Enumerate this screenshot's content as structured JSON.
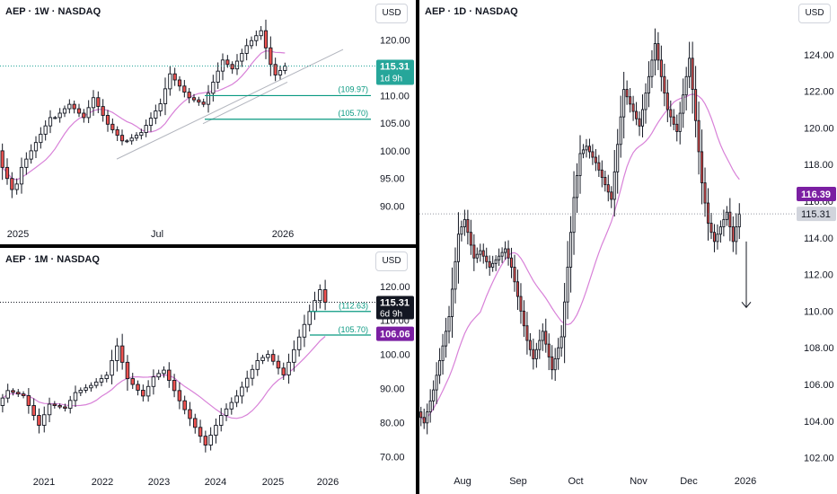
{
  "colors": {
    "up": "#26a69a",
    "down": "#ef5350",
    "wick": "#131722",
    "ma": "#d881d8",
    "trendline": "#b2b5be",
    "level": "#089981",
    "purple": "#7b1fa2",
    "current": "#131722",
    "grey_label": "#d1d4dc"
  },
  "panels": {
    "weekly": {
      "title": "AEP · 1W · NASDAQ",
      "currency": "USD",
      "price_badge": {
        "price": "115.31",
        "countdown": "1d 9h"
      },
      "levels": [
        {
          "label": "(109.97)",
          "value": 109.97
        },
        {
          "label": "(105.70)",
          "value": 105.7
        }
      ]
    },
    "monthly": {
      "title": "AEP · 1M · NASDAQ",
      "currency": "USD",
      "price_badge": {
        "price": "115.31",
        "countdown": "6d 9h"
      },
      "level_badge": "106.06",
      "levels": [
        {
          "label": "(112.63)",
          "value": 112.63
        },
        {
          "label": "(105.70)",
          "value": 105.7
        }
      ]
    },
    "daily": {
      "title": "AEP · 1D · NASDAQ",
      "currency": "USD",
      "ma_badge": "116.39",
      "price_badge": "115.31"
    }
  },
  "chart_data": [
    {
      "type": "candlestick",
      "title": "AEP · 1W · NASDAQ",
      "ylim": [
        87,
        124
      ],
      "yticks": [
        90,
        95,
        100,
        105,
        110,
        115,
        120
      ],
      "yticklabels": [
        "90.00",
        "95.00",
        "100.00",
        "105.00",
        "110.00",
        "115.00",
        "120.00"
      ],
      "xticklabels": [
        "2025",
        "Jul",
        "2026"
      ],
      "series": [
        {
          "values": [
            [
              100.0,
              97.0
            ],
            [
              97.0,
              95.0
            ],
            [
              95.0,
              93.0
            ],
            [
              93.0,
              94.0
            ],
            [
              94.0,
              97.0
            ],
            [
              97.0,
              98.5
            ],
            [
              98.5,
              100.0
            ],
            [
              100.0,
              101.5
            ],
            [
              101.5,
              103.0
            ],
            [
              103.0,
              104.5
            ],
            [
              104.5,
              106.0
            ],
            [
              106.0,
              106.0
            ],
            [
              106.0,
              106.8
            ],
            [
              106.8,
              107.6
            ],
            [
              107.6,
              108.4
            ],
            [
              108.4,
              107.6
            ],
            [
              107.6,
              106.8
            ],
            [
              106.8,
              106.0
            ],
            [
              106.0,
              107.8
            ],
            [
              107.8,
              109.6
            ],
            [
              109.6,
              108.0
            ],
            [
              108.0,
              106.4
            ],
            [
              106.4,
              104.8
            ],
            [
              104.8,
              103.8
            ],
            [
              103.8,
              102.8
            ],
            [
              102.8,
              101.8
            ],
            [
              101.8,
              101.8
            ],
            [
              101.8,
              102.3
            ],
            [
              102.3,
              102.8
            ],
            [
              102.8,
              103.3
            ],
            [
              103.3,
              104.6
            ],
            [
              104.6,
              105.9
            ],
            [
              105.9,
              107.2
            ],
            [
              107.2,
              108.5
            ],
            [
              108.5,
              111.2
            ],
            [
              111.2,
              113.9
            ],
            [
              113.9,
              112.8
            ],
            [
              112.8,
              111.7
            ],
            [
              111.7,
              110.6
            ],
            [
              110.6,
              109.6
            ],
            [
              109.6,
              109.2
            ],
            [
              109.2,
              108.8
            ],
            [
              108.8,
              108.4
            ],
            [
              108.4,
              110.4
            ],
            [
              110.4,
              112.4
            ],
            [
              112.4,
              114.4
            ],
            [
              114.4,
              116.4
            ],
            [
              116.4,
              115.6
            ],
            [
              115.6,
              114.8
            ],
            [
              114.8,
              116.2
            ],
            [
              116.2,
              117.6
            ],
            [
              117.6,
              119.0
            ],
            [
              119.0,
              119.9
            ],
            [
              119.9,
              120.8
            ],
            [
              120.8,
              121.7
            ],
            [
              121.7,
              118.6
            ],
            [
              118.6,
              115.6
            ],
            [
              115.6,
              113.7
            ],
            [
              113.7,
              114.5
            ],
            [
              114.5,
              115.3
            ]
          ]
        }
      ]
    },
    {
      "type": "candlestick",
      "title": "AEP · 1M · NASDAQ",
      "ylim": [
        68,
        126
      ],
      "yticks": [
        70,
        80,
        90,
        100,
        110,
        120
      ],
      "yticklabels": [
        "70.00",
        "80.00",
        "90.00",
        "100.00",
        "110.00",
        "120.00"
      ],
      "xticklabels": [
        "2021",
        "2022",
        "2023",
        "2024",
        "2025",
        "2026"
      ],
      "series": [
        {
          "values": [
            [
              85.0,
              87.2
            ],
            [
              87.2,
              89.4
            ],
            [
              89.4,
              88.9
            ],
            [
              88.9,
              88.4
            ],
            [
              88.4,
              87.9
            ],
            [
              87.9,
              85.0
            ],
            [
              85.0,
              82.1
            ],
            [
              82.1,
              79.2
            ],
            [
              79.2,
              82.3
            ],
            [
              82.3,
              85.4
            ],
            [
              85.4,
              85.0
            ],
            [
              85.0,
              84.6
            ],
            [
              84.6,
              84.2
            ],
            [
              84.2,
              86.5
            ],
            [
              86.5,
              88.8
            ],
            [
              88.8,
              89.5
            ],
            [
              89.5,
              90.2
            ],
            [
              90.2,
              90.9
            ],
            [
              90.9,
              91.9
            ],
            [
              91.9,
              92.9
            ],
            [
              92.9,
              93.9
            ],
            [
              93.9,
              98.2
            ],
            [
              98.2,
              102.5
            ],
            [
              102.5,
              97.7
            ],
            [
              97.7,
              92.9
            ],
            [
              92.9,
              91.2
            ],
            [
              91.2,
              89.5
            ],
            [
              89.5,
              87.8
            ],
            [
              87.8,
              90.6
            ],
            [
              90.6,
              93.4
            ],
            [
              93.4,
              94.4
            ],
            [
              94.4,
              95.4
            ],
            [
              95.4,
              92.4
            ],
            [
              92.4,
              89.4
            ],
            [
              89.4,
              86.4
            ],
            [
              86.4,
              83.8
            ],
            [
              83.8,
              81.2
            ],
            [
              81.2,
              78.6
            ],
            [
              78.6,
              76.0
            ],
            [
              76.0,
              73.4
            ],
            [
              73.4,
              76.3
            ],
            [
              76.3,
              79.2
            ],
            [
              79.2,
              82.1
            ],
            [
              82.1,
              84.0
            ],
            [
              84.0,
              85.9
            ],
            [
              85.9,
              87.8
            ],
            [
              87.8,
              90.4
            ],
            [
              90.4,
              93.0
            ],
            [
              93.0,
              95.6
            ],
            [
              95.6,
              98.2
            ],
            [
              98.2,
              99.1
            ],
            [
              99.1,
              100.0
            ],
            [
              100.0,
              98.0
            ],
            [
              98.0,
              96.0
            ],
            [
              96.0,
              94.0
            ],
            [
              94.0,
              97.7
            ],
            [
              97.7,
              101.4
            ],
            [
              101.4,
              105.1
            ],
            [
              105.1,
              108.8
            ],
            [
              108.8,
              112.6
            ],
            [
              112.6,
              115.8
            ],
            [
              115.8,
              119.0
            ],
            [
              119.0,
              115.3
            ]
          ]
        }
      ]
    },
    {
      "type": "candlestick",
      "title": "AEP · 1D · NASDAQ",
      "ylim": [
        101,
        126
      ],
      "yticks": [
        102,
        104,
        106,
        108,
        110,
        112,
        114,
        116,
        118,
        120,
        122,
        124
      ],
      "yticklabels": [
        "102.00",
        "104.00",
        "106.00",
        "108.00",
        "110.00",
        "112.00",
        "114.00",
        "116.00",
        "118.00",
        "120.00",
        "122.00",
        "124.00"
      ],
      "xticklabels": [
        "Aug",
        "Sep",
        "Oct",
        "Nov",
        "Dec",
        "2026"
      ],
      "series": [
        {
          "values": [
            [
              104.5,
              104.2
            ],
            [
              104.2,
              103.9
            ],
            [
              103.9,
              104.5
            ],
            [
              104.5,
              105.1
            ],
            [
              105.1,
              105.7
            ],
            [
              105.7,
              106.5
            ],
            [
              106.5,
              107.3
            ],
            [
              107.3,
              108.1
            ],
            [
              108.1,
              108.9
            ],
            [
              108.9,
              109.7
            ],
            [
              109.7,
              111.2
            ],
            [
              111.2,
              112.7
            ],
            [
              112.7,
              114.2
            ],
            [
              114.2,
              114.6
            ],
            [
              114.6,
              115.0
            ],
            [
              115.0,
              114.3
            ],
            [
              114.3,
              113.6
            ],
            [
              113.6,
              112.9
            ],
            [
              112.9,
              113.1
            ],
            [
              113.1,
              113.3
            ],
            [
              113.3,
              113.0
            ],
            [
              113.0,
              112.7
            ],
            [
              112.7,
              112.4
            ],
            [
              112.4,
              112.6
            ],
            [
              112.6,
              112.8
            ],
            [
              112.8,
              113.0
            ],
            [
              113.0,
              113.2
            ],
            [
              113.2,
              113.4
            ],
            [
              113.4,
              112.9
            ],
            [
              112.9,
              112.4
            ],
            [
              112.4,
              111.6
            ],
            [
              111.6,
              110.8
            ],
            [
              110.8,
              110.0
            ],
            [
              110.0,
              109.2
            ],
            [
              109.2,
              108.4
            ],
            [
              108.4,
              107.9
            ],
            [
              107.9,
              107.4
            ],
            [
              107.4,
              107.9
            ],
            [
              107.9,
              108.4
            ],
            [
              108.4,
              108.9
            ],
            [
              108.9,
              108.2
            ],
            [
              108.2,
              107.5
            ],
            [
              107.5,
              106.8
            ],
            [
              106.8,
              107.4
            ],
            [
              107.4,
              108.0
            ],
            [
              108.0,
              108.6
            ],
            [
              108.6,
              110.5
            ],
            [
              110.5,
              112.4
            ],
            [
              112.4,
              114.3
            ],
            [
              114.3,
              116.2
            ],
            [
              116.2,
              117.4
            ],
            [
              117.4,
              118.6
            ],
            [
              118.6,
              118.8
            ],
            [
              118.8,
              119.0
            ],
            [
              119.0,
              118.7
            ],
            [
              118.7,
              118.4
            ],
            [
              118.4,
              118.1
            ],
            [
              118.1,
              117.7
            ],
            [
              117.7,
              117.3
            ],
            [
              117.3,
              116.9
            ],
            [
              116.9,
              116.5
            ],
            [
              116.5,
              116.1
            ],
            [
              116.1,
              117.6
            ],
            [
              117.6,
              119.1
            ],
            [
              119.1,
              120.6
            ],
            [
              120.6,
              122.1
            ],
            [
              122.1,
              121.7
            ],
            [
              121.7,
              121.3
            ],
            [
              121.3,
              120.9
            ],
            [
              120.9,
              120.5
            ],
            [
              120.5,
              120.1
            ],
            [
              120.1,
              121.0
            ],
            [
              121.0,
              121.9
            ],
            [
              121.9,
              122.8
            ],
            [
              122.8,
              123.7
            ],
            [
              123.7,
              124.6
            ],
            [
              124.6,
              123.7
            ],
            [
              123.7,
              122.8
            ],
            [
              122.8,
              121.9
            ],
            [
              121.9,
              121.0
            ],
            [
              121.0,
              120.6
            ],
            [
              120.6,
              120.2
            ],
            [
              120.2,
              119.8
            ],
            [
              119.8,
              120.8
            ],
            [
              120.8,
              121.8
            ],
            [
              121.8,
              122.8
            ],
            [
              122.8,
              123.8
            ],
            [
              123.8,
              122.1
            ],
            [
              122.1,
              120.4
            ],
            [
              120.4,
              118.7
            ],
            [
              118.7,
              117.0
            ],
            [
              117.0,
              115.9
            ],
            [
              115.9,
              114.8
            ],
            [
              114.8,
              114.3
            ],
            [
              114.3,
              113.8
            ],
            [
              113.8,
              114.2
            ],
            [
              114.2,
              114.6
            ],
            [
              114.6,
              115.0
            ],
            [
              115.0,
              115.4
            ],
            [
              115.4,
              114.6
            ],
            [
              114.6,
              113.8
            ],
            [
              113.8,
              114.6
            ],
            [
              114.6,
              115.3
            ]
          ]
        }
      ]
    }
  ]
}
